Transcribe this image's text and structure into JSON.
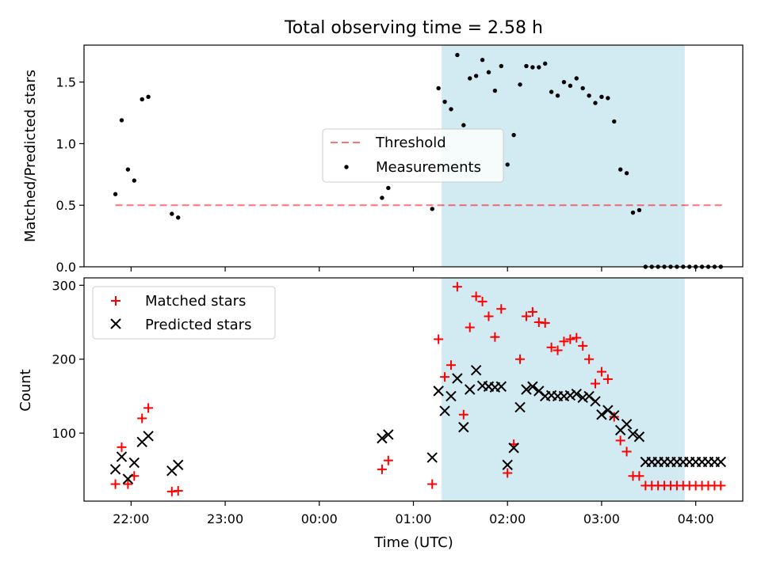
{
  "title": "Total observing time = 2.58 h",
  "colors": {
    "shade": "#add8e6",
    "threshold": "#ff0000",
    "matched": "#ff0000",
    "predicted": "#000000",
    "measure": "#000000"
  },
  "chart_data": [
    {
      "type": "scatter",
      "ylabel": "Matched/Predicted stars",
      "ylim": [
        0,
        1.8
      ],
      "yticks": [
        0.0,
        0.5,
        1.0,
        1.5
      ],
      "ytick_labels": [
        "0.0",
        "0.5",
        "1.0",
        "1.5"
      ],
      "shaded_region": [
        "01:18",
        "03:53"
      ],
      "threshold": {
        "name": "Threshold",
        "value": 0.5,
        "x_range": [
          "21:50",
          "04:18"
        ]
      },
      "legend": {
        "location": "center",
        "entries": [
          "Threshold",
          "Measurements"
        ]
      },
      "series": [
        {
          "name": "Measurements",
          "x": [
            "21:50",
            "21:54",
            "21:58",
            "22:02",
            "22:07",
            "22:11",
            "22:26",
            "22:30",
            "00:40",
            "00:44",
            "01:12",
            "01:16",
            "01:20",
            "01:24",
            "01:28",
            "01:32",
            "01:36",
            "01:40",
            "01:44",
            "01:48",
            "01:52",
            "01:56",
            "02:00",
            "02:04",
            "02:08",
            "02:12",
            "02:16",
            "02:20",
            "02:24",
            "02:28",
            "02:32",
            "02:36",
            "02:40",
            "02:44",
            "02:48",
            "02:52",
            "02:56",
            "03:00",
            "03:04",
            "03:08",
            "03:12",
            "03:16",
            "03:20",
            "03:24",
            "03:28",
            "03:32",
            "03:36",
            "03:40",
            "03:44",
            "03:48",
            "03:52",
            "03:56",
            "04:00",
            "04:04",
            "04:08",
            "04:12",
            "04:16"
          ],
          "y": [
            0.59,
            1.19,
            0.79,
            0.7,
            1.36,
            1.38,
            0.43,
            0.4,
            0.56,
            0.64,
            0.47,
            1.45,
            1.34,
            1.28,
            1.72,
            1.15,
            1.53,
            1.55,
            1.68,
            1.58,
            1.43,
            1.63,
            0.83,
            1.07,
            1.48,
            1.63,
            1.62,
            1.62,
            1.65,
            1.42,
            1.39,
            1.5,
            1.47,
            1.53,
            1.45,
            1.39,
            1.33,
            1.38,
            1.37,
            1.18,
            0.79,
            0.76,
            0.44,
            0.46,
            0.0,
            0.0,
            0.0,
            0.0,
            0.0,
            0.0,
            0.0,
            0.0,
            0.0,
            0.0,
            0.0,
            0.0,
            0.0
          ]
        }
      ]
    },
    {
      "type": "scatter",
      "xlabel": "Time (UTC)",
      "ylabel": "Count",
      "ylim": [
        8,
        310
      ],
      "yticks": [
        100,
        200,
        300
      ],
      "xticks": [
        "22:00",
        "23:00",
        "00:00",
        "01:00",
        "02:00",
        "03:00",
        "04:00"
      ],
      "xlim": [
        "21:30",
        "04:30"
      ],
      "shaded_region": [
        "01:18",
        "03:53"
      ],
      "legend": {
        "location": "upper left",
        "entries": [
          "Matched stars",
          "Predicted stars"
        ]
      },
      "series": [
        {
          "name": "Matched stars",
          "marker": "+",
          "x": [
            "21:50",
            "21:54",
            "21:58",
            "22:02",
            "22:07",
            "22:11",
            "22:26",
            "22:30",
            "00:40",
            "00:44",
            "01:12",
            "01:16",
            "01:20",
            "01:24",
            "01:28",
            "01:32",
            "01:36",
            "01:40",
            "01:44",
            "01:48",
            "01:52",
            "01:56",
            "02:00",
            "02:04",
            "02:08",
            "02:12",
            "02:16",
            "02:20",
            "02:24",
            "02:28",
            "02:32",
            "02:36",
            "02:40",
            "02:44",
            "02:48",
            "02:52",
            "02:56",
            "03:00",
            "03:04",
            "03:08",
            "03:12",
            "03:16",
            "03:20",
            "03:24",
            "03:28",
            "03:32",
            "03:36",
            "03:40",
            "03:44",
            "03:48",
            "03:52",
            "03:56",
            "04:00",
            "04:04",
            "04:08",
            "04:12",
            "04:16"
          ],
          "y": [
            31,
            81,
            31,
            42,
            120,
            134,
            21,
            22,
            51,
            63,
            31,
            227,
            176,
            192,
            298,
            125,
            243,
            285,
            278,
            258,
            230,
            268,
            46,
            85,
            200,
            258,
            264,
            250,
            249,
            216,
            212,
            224,
            227,
            229,
            218,
            200,
            167,
            183,
            173,
            122,
            90,
            75,
            42,
            42,
            29,
            29,
            29,
            29,
            29,
            29,
            29,
            29,
            29,
            29,
            29,
            29,
            29
          ]
        },
        {
          "name": "Predicted stars",
          "marker": "x",
          "x": [
            "21:50",
            "21:54",
            "21:58",
            "22:02",
            "22:07",
            "22:11",
            "22:26",
            "22:30",
            "00:40",
            "00:44",
            "01:12",
            "01:16",
            "01:20",
            "01:24",
            "01:28",
            "01:32",
            "01:36",
            "01:40",
            "01:44",
            "01:48",
            "01:52",
            "01:56",
            "02:00",
            "02:04",
            "02:08",
            "02:12",
            "02:16",
            "02:20",
            "02:24",
            "02:28",
            "02:32",
            "02:36",
            "02:40",
            "02:44",
            "02:48",
            "02:52",
            "02:56",
            "03:00",
            "03:04",
            "03:08",
            "03:12",
            "03:16",
            "03:20",
            "03:24",
            "03:28",
            "03:32",
            "03:36",
            "03:40",
            "03:44",
            "03:48",
            "03:52",
            "03:56",
            "04:00",
            "04:04",
            "04:08",
            "04:12",
            "04:16"
          ],
          "y": [
            51,
            68,
            38,
            60,
            88,
            96,
            49,
            57,
            93,
            98,
            67,
            157,
            130,
            150,
            174,
            108,
            159,
            185,
            164,
            163,
            162,
            163,
            57,
            80,
            135,
            159,
            163,
            157,
            150,
            151,
            150,
            150,
            151,
            153,
            148,
            150,
            143,
            125,
            131,
            124,
            104,
            112,
            99,
            95,
            61,
            61,
            61,
            61,
            61,
            61,
            61,
            61,
            61,
            61,
            61,
            61,
            61
          ]
        }
      ]
    }
  ]
}
